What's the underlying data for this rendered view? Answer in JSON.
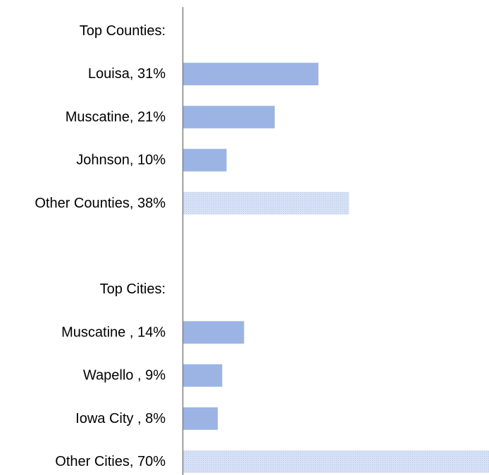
{
  "chart_data": {
    "type": "bar",
    "orientation": "horizontal",
    "categories": [
      "Top Counties:",
      "Louisa, 31%",
      "Muscatine, 21%",
      "Johnson, 10%",
      "Other Counties, 38%",
      "",
      "Top Cities:",
      "Muscatine , 14%",
      "Wapello , 9%",
      "Iowa City , 8%",
      "Other Cities, 70%"
    ],
    "values": [
      null,
      31,
      21,
      10,
      38,
      null,
      null,
      14,
      9,
      8,
      70
    ],
    "patterned": [
      false,
      false,
      false,
      false,
      true,
      false,
      false,
      false,
      false,
      false,
      true
    ],
    "xlim": [
      0,
      70
    ],
    "grid": false,
    "legend": "none",
    "colors": {
      "bar": "#9bb4e4",
      "pattern_bg": "#d6e1f5",
      "pattern_dot": "#b5c8ec",
      "axis": "#808080"
    }
  }
}
